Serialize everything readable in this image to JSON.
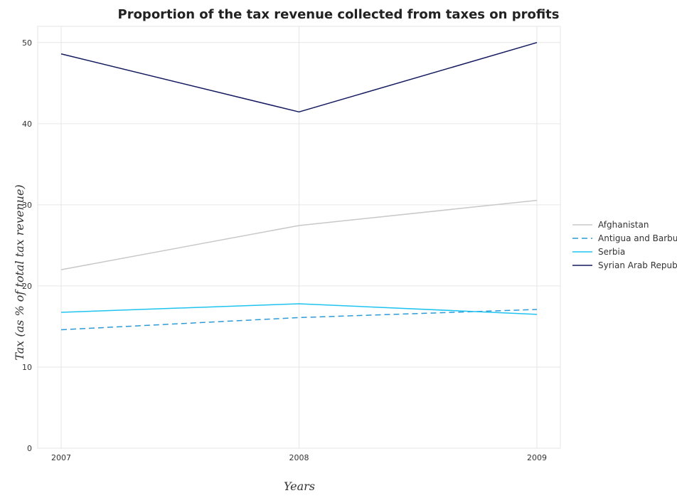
{
  "chart_data": {
    "type": "line",
    "title": "Proportion of the tax revenue collected from taxes on profits",
    "xlabel": "Years",
    "ylabel": "Tax (as % of total tax revenue)",
    "categories": [
      "2007",
      "2008",
      "2009"
    ],
    "ylim": [
      0,
      52
    ],
    "yticks": [
      0,
      10,
      20,
      30,
      40,
      50
    ],
    "grid": true,
    "legend_position": "right",
    "series": [
      {
        "name": "Afghanistan",
        "color": "#c8c8c8",
        "dash": "solid",
        "values": [
          22.0,
          27.45,
          30.55
        ]
      },
      {
        "name": "Antigua and Barbuda",
        "color": "#2e9bd6",
        "dash": "dashed",
        "values": [
          14.6,
          16.1,
          17.1
        ]
      },
      {
        "name": "Serbia",
        "color": "#1fc3f0",
        "dash": "solid",
        "values": [
          16.75,
          17.8,
          16.5
        ]
      },
      {
        "name": "Syrian Arab Republic",
        "color": "#13195e",
        "dash": "solid",
        "values": [
          48.6,
          41.45,
          50.0
        ]
      }
    ]
  }
}
